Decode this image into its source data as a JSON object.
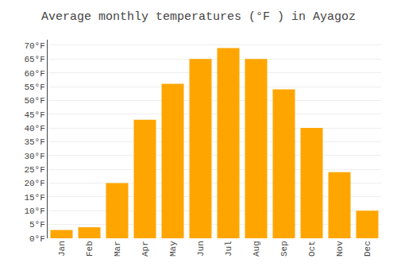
{
  "chart_data": {
    "type": "bar",
    "title": "Average monthly temperatures (°F ) in Ayagoz",
    "categories": [
      "Jan",
      "Feb",
      "Mar",
      "Apr",
      "May",
      "Jun",
      "Jul",
      "Aug",
      "Sep",
      "Oct",
      "Nov",
      "Dec"
    ],
    "values": [
      3,
      4,
      20,
      43,
      56,
      65,
      69,
      65,
      54,
      40,
      24,
      10
    ],
    "color": "#FFA500",
    "ylim": [
      0,
      72
    ],
    "yticks": [
      {
        "value": 0,
        "label": "0°F"
      },
      {
        "value": 5,
        "label": "5°F"
      },
      {
        "value": 10,
        "label": "10°F"
      },
      {
        "value": 15,
        "label": "15°F"
      },
      {
        "value": 20,
        "label": "20°F"
      },
      {
        "value": 25,
        "label": "25°F"
      },
      {
        "value": 30,
        "label": "30°F"
      },
      {
        "value": 35,
        "label": "35°F"
      },
      {
        "value": 40,
        "label": "40°F"
      },
      {
        "value": 45,
        "label": "45°F"
      },
      {
        "value": 50,
        "label": "50°F"
      },
      {
        "value": 55,
        "label": "55°F"
      },
      {
        "value": 60,
        "label": "60°F"
      },
      {
        "value": 65,
        "label": "65°F"
      },
      {
        "value": 70,
        "label": "70°F"
      }
    ],
    "grid": true
  }
}
